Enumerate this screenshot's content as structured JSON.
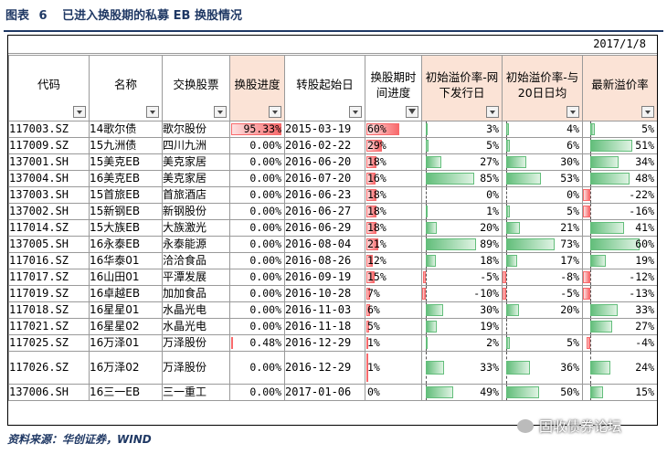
{
  "caption": {
    "label": "图表",
    "number": "6",
    "title": "已进入换股期的私募 EB 换股情况"
  },
  "sheet": {
    "date": "2017/1/8",
    "headers": [
      "代码",
      "名称",
      "交换股票",
      "换股进度",
      "转股起始日",
      "换股期时间进度",
      "初始溢价率-网下发行日",
      "初始溢价率-与20日日均",
      "最新溢价率"
    ],
    "rows": [
      {
        "code": "117003.SZ",
        "name": "14歌尔债",
        "stock": "歌尔股份",
        "progress": "95.33%",
        "start": "2015-03-19",
        "time_progress": "60%",
        "p1": "3%",
        "p2": "4%",
        "p3": "5%",
        "p1v": 3,
        "p2v": 4,
        "p3v": 5,
        "pv": 95.33,
        "tv": 60
      },
      {
        "code": "117009.SZ",
        "name": "15九洲债",
        "stock": "四川九洲",
        "progress": "0.00%",
        "start": "2016-02-22",
        "time_progress": "29%",
        "p1": "5%",
        "p2": "6%",
        "p3": "51%",
        "p1v": 5,
        "p2v": 6,
        "p3v": 51,
        "pv": 0,
        "tv": 29
      },
      {
        "code": "137001.SH",
        "name": "15美克EB",
        "stock": "美克家居",
        "progress": "0.00%",
        "start": "2016-06-20",
        "time_progress": "18%",
        "p1": "27%",
        "p2": "30%",
        "p3": "34%",
        "p1v": 27,
        "p2v": 30,
        "p3v": 34,
        "pv": 0,
        "tv": 18
      },
      {
        "code": "137004.SH",
        "name": "16美克EB",
        "stock": "美克家居",
        "progress": "0.00%",
        "start": "2016-07-20",
        "time_progress": "16%",
        "p1": "85%",
        "p2": "53%",
        "p3": "48%",
        "p1v": 85,
        "p2v": 53,
        "p3v": 48,
        "pv": 0,
        "tv": 16
      },
      {
        "code": "137003.SH",
        "name": "15首旅EB",
        "stock": "首旅酒店",
        "progress": "0.00%",
        "start": "2016-06-23",
        "time_progress": "18%",
        "p1": "0%",
        "p2": "0%",
        "p3": "-22%",
        "p1v": 0,
        "p2v": 0,
        "p3v": -22,
        "pv": 0,
        "tv": 18
      },
      {
        "code": "137002.SH",
        "name": "15新钢EB",
        "stock": "新钢股份",
        "progress": "0.00%",
        "start": "2016-06-27",
        "time_progress": "18%",
        "p1": "1%",
        "p2": "5%",
        "p3": "-16%",
        "p1v": 1,
        "p2v": 5,
        "p3v": -16,
        "pv": 0,
        "tv": 18
      },
      {
        "code": "117014.SZ",
        "name": "15大族EB",
        "stock": "大族激光",
        "progress": "0.00%",
        "start": "2016-06-29",
        "time_progress": "18%",
        "p1": "20%",
        "p2": "21%",
        "p3": "41%",
        "p1v": 20,
        "p2v": 21,
        "p3v": 41,
        "pv": 0,
        "tv": 18
      },
      {
        "code": "137005.SH",
        "name": "16永泰EB",
        "stock": "永泰能源",
        "progress": "0.00%",
        "start": "2016-08-04",
        "time_progress": "21%",
        "p1": "89%",
        "p2": "73%",
        "p3": "60%",
        "p1v": 89,
        "p2v": 73,
        "p3v": 60,
        "pv": 0,
        "tv": 21
      },
      {
        "code": "117016.SZ",
        "name": "16华泰01",
        "stock": "洽洽食品",
        "progress": "0.00%",
        "start": "2016-08-26",
        "time_progress": "12%",
        "p1": "18%",
        "p2": "17%",
        "p3": "19%",
        "p1v": 18,
        "p2v": 17,
        "p3v": 19,
        "pv": 0,
        "tv": 12
      },
      {
        "code": "117017.SZ",
        "name": "16山田01",
        "stock": "平潭发展",
        "progress": "0.00%",
        "start": "2016-09-19",
        "time_progress": "15%",
        "p1": "-5%",
        "p2": "-8%",
        "p3": "-12%",
        "p1v": -5,
        "p2v": -8,
        "p3v": -12,
        "pv": 0,
        "tv": 15
      },
      {
        "code": "117019.SZ",
        "name": "16卓越EB",
        "stock": "加加食品",
        "progress": "0.00%",
        "start": "2016-10-28",
        "time_progress": "7%",
        "p1": "-10%",
        "p2": "-5%",
        "p3": "-13%",
        "p1v": -10,
        "p2v": -5,
        "p3v": -13,
        "pv": 0,
        "tv": 7
      },
      {
        "code": "117018.SZ",
        "name": "16星星01",
        "stock": "水晶光电",
        "progress": "0.00%",
        "start": "2016-11-03",
        "time_progress": "6%",
        "p1": "30%",
        "p2": "20%",
        "p3": "33%",
        "p1v": 30,
        "p2v": 20,
        "p3v": 33,
        "pv": 0,
        "tv": 6
      },
      {
        "code": "117021.SZ",
        "name": "16星星02",
        "stock": "水晶光电",
        "progress": "0.00%",
        "start": "2016-11-18",
        "time_progress": "5%",
        "p1": "19%",
        "p2": "",
        "p3": "27%",
        "p1v": 19,
        "p2v": 0,
        "p3v": 27,
        "pv": 0,
        "tv": 5
      },
      {
        "code": "117025.SZ",
        "name": "16万泽01",
        "stock": "万泽股份",
        "progress": "0.48%",
        "start": "2016-12-29",
        "time_progress": "1%",
        "p1": "2%",
        "p2": "5%",
        "p3": "-4%",
        "p1v": 2,
        "p2v": 5,
        "p3v": -4,
        "pv": 0.48,
        "tv": 1
      },
      {
        "code": "117026.SZ",
        "name": "16万泽02",
        "stock": "万泽股份",
        "progress": "0.00%",
        "start": "2016-12-29",
        "time_progress": "1%",
        "p1": "33%",
        "p2": "36%",
        "p3": "24%",
        "p1v": 33,
        "p2v": 36,
        "p3v": 24,
        "pv": 0,
        "tv": 1,
        "tall": true
      },
      {
        "code": "137006.SH",
        "name": "16三一EB",
        "stock": "三一重工",
        "progress": "0.00%",
        "start": "2017-01-06",
        "time_progress": "0%",
        "p1": "49%",
        "p2": "50%",
        "p3": "15%",
        "p1v": 49,
        "p2v": 50,
        "p3v": 15,
        "pv": 0,
        "tv": 0
      }
    ]
  },
  "footer": "资料来源：华创证券，WIND",
  "watermark": "固收债券论坛",
  "colors": {
    "caption": "#1f3864",
    "pos_bar": "#63be7b",
    "neg_bar": "#f8696b",
    "header_pink": "#fbe3d6"
  }
}
